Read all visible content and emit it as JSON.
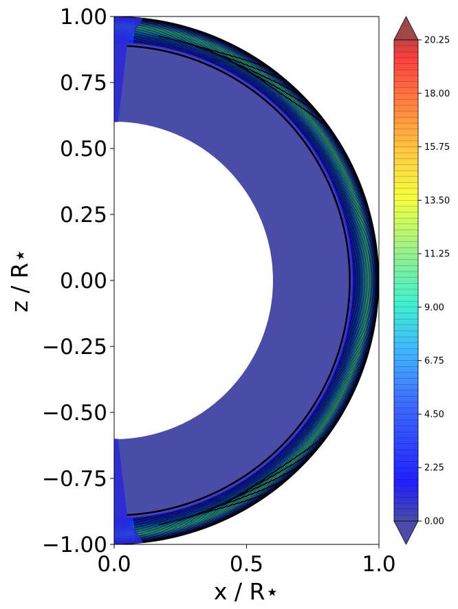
{
  "chart_data": {
    "type": "heatmap",
    "title": "",
    "xlabel": "x / R⋆",
    "ylabel": "z / R⋆",
    "xlim": [
      0.0,
      1.0
    ],
    "ylim": [
      -1.0,
      1.0
    ],
    "x_ticks": [
      "0.0",
      "0.5",
      "1.0"
    ],
    "y_ticks": [
      "−1.00",
      "−0.75",
      "−0.50",
      "−0.25",
      "0.00",
      "0.25",
      "0.50",
      "0.75",
      "1.00"
    ],
    "domain": {
      "inner_radius": 0.6,
      "outer_radius": 1.0,
      "dense_shell_inner_radius": 0.9,
      "polar_cap_half_width_x": 0.05
    },
    "colorbar": {
      "min": 0.0,
      "max": 20.25,
      "extend": "both",
      "colormap": "jet",
      "ticks": [
        "0.00",
        "2.25",
        "4.50",
        "6.75",
        "9.00",
        "11.25",
        "13.50",
        "15.75",
        "18.00",
        "20.25"
      ]
    },
    "grid": false,
    "legend": "none",
    "colors": {
      "background_field": "#4b4ba8",
      "contour_lines": "#000000"
    }
  }
}
